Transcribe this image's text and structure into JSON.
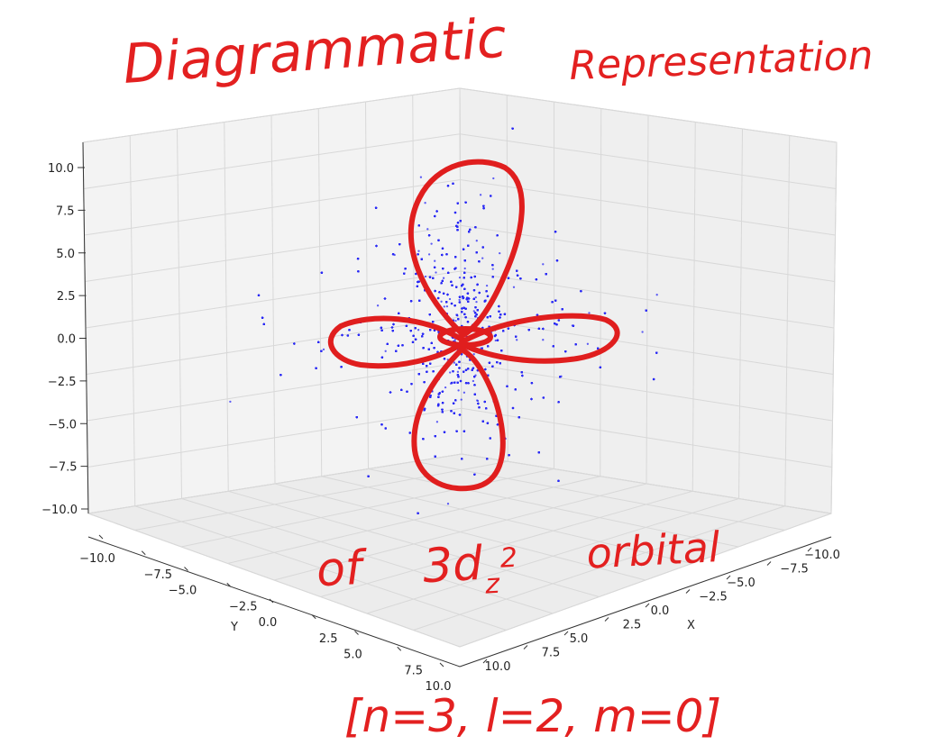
{
  "annotations": {
    "line1": "Diagrammatic",
    "line2": "Representation",
    "line3_pre": "of",
    "line3_num": "3d",
    "line3_sub": "z",
    "line3_sup": "2",
    "line3_post": "orbital",
    "quantum_numbers": "[n=3, l=2, m=0]"
  },
  "colors": {
    "points": "#2a2af5",
    "annotation": "#e01e1e",
    "pane": "#f2f2f2"
  },
  "chart_data": {
    "type": "scatter",
    "projection": "3d",
    "title": "",
    "xlabel": "X",
    "ylabel": "Y",
    "zlabel": "",
    "xlim": [
      -10,
      10
    ],
    "ylim": [
      -10,
      10
    ],
    "zlim": [
      -10,
      10
    ],
    "x_ticks": [
      "−10.0",
      "−7.5",
      "−5.0",
      "−2.5",
      "0.0",
      "2.5",
      "5.0",
      "7.5",
      "10.0"
    ],
    "y_ticks": [
      "−10.0",
      "−7.5",
      "−5.0",
      "−2.5",
      "0.0",
      "2.5",
      "5.0",
      "7.5",
      "10.0"
    ],
    "z_ticks": [
      "10.0",
      "7.5",
      "5.0",
      "2.5",
      "0.0",
      "−2.5",
      "−5.0",
      "−7.5",
      "−10.0"
    ],
    "grid": true,
    "series": [
      {
        "marker": "dot",
        "point_count": 6000,
        "distribution": "3d_z2 probability density (two lobes along z, torus in xy-plane)"
      }
    ]
  }
}
